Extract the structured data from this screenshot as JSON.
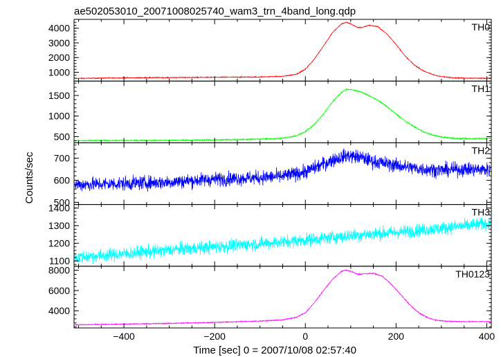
{
  "chart_data": {
    "type": "line",
    "title": "ae502053010_20071008025740_wam3_trn_4band_long.qdp",
    "xlabel": "Time [sec] 0 = 2007/10/08 02:57:40",
    "ylabel": "Counts/sec",
    "xlim": [
      -510,
      410
    ],
    "xticks": [
      -400,
      -200,
      0,
      200,
      400
    ],
    "xtick_labels": [
      "−400",
      "−200",
      "0",
      "200",
      "400"
    ],
    "grid": false,
    "panels": [
      {
        "name": "TH0",
        "color": "#ff0000",
        "ylim": [
          400,
          4600
        ],
        "yticks": [
          1000,
          2000,
          3000,
          4000
        ],
        "ytick_labels": [
          "1000",
          "2000",
          "3000",
          "4000"
        ],
        "noise": 30,
        "points": [
          [
            -510,
            580
          ],
          [
            -400,
            620
          ],
          [
            -300,
            640
          ],
          [
            -200,
            660
          ],
          [
            -100,
            680
          ],
          [
            -50,
            720
          ],
          [
            -20,
            870
          ],
          [
            0,
            1200
          ],
          [
            20,
            1900
          ],
          [
            40,
            2800
          ],
          [
            60,
            3700
          ],
          [
            80,
            4300
          ],
          [
            90,
            4400
          ],
          [
            100,
            4300
          ],
          [
            115,
            4050
          ],
          [
            125,
            4050
          ],
          [
            140,
            4200
          ],
          [
            160,
            4100
          ],
          [
            180,
            3600
          ],
          [
            200,
            2900
          ],
          [
            220,
            2100
          ],
          [
            240,
            1500
          ],
          [
            260,
            1100
          ],
          [
            280,
            850
          ],
          [
            300,
            700
          ],
          [
            330,
            620
          ],
          [
            360,
            600
          ],
          [
            410,
            590
          ]
        ]
      },
      {
        "name": "TH1",
        "color": "#00ff00",
        "ylim": [
          350,
          1850
        ],
        "yticks": [
          500,
          1000,
          1500
        ],
        "ytick_labels": [
          "500",
          "1000",
          "1500"
        ],
        "noise": 15,
        "points": [
          [
            -510,
            400
          ],
          [
            -300,
            410
          ],
          [
            -200,
            420
          ],
          [
            -100,
            440
          ],
          [
            -50,
            460
          ],
          [
            -20,
            520
          ],
          [
            0,
            620
          ],
          [
            20,
            800
          ],
          [
            40,
            1050
          ],
          [
            60,
            1350
          ],
          [
            80,
            1580
          ],
          [
            90,
            1650
          ],
          [
            100,
            1640
          ],
          [
            120,
            1600
          ],
          [
            140,
            1500
          ],
          [
            160,
            1380
          ],
          [
            180,
            1230
          ],
          [
            200,
            1050
          ],
          [
            220,
            880
          ],
          [
            240,
            740
          ],
          [
            260,
            620
          ],
          [
            280,
            540
          ],
          [
            300,
            490
          ],
          [
            340,
            450
          ],
          [
            410,
            460
          ]
        ]
      },
      {
        "name": "TH2",
        "color": "#0000ff",
        "ylim": [
          490,
          770
        ],
        "yticks": [
          500,
          600,
          700
        ],
        "ytick_labels": [
          "500",
          "600",
          "700"
        ],
        "noise": 30,
        "points": [
          [
            -510,
            580
          ],
          [
            -400,
            585
          ],
          [
            -300,
            592
          ],
          [
            -200,
            605
          ],
          [
            -100,
            612
          ],
          [
            -50,
            618
          ],
          [
            0,
            638
          ],
          [
            30,
            665
          ],
          [
            60,
            692
          ],
          [
            90,
            712
          ],
          [
            120,
            705
          ],
          [
            150,
            685
          ],
          [
            200,
            668
          ],
          [
            250,
            652
          ],
          [
            300,
            646
          ],
          [
            350,
            650
          ],
          [
            410,
            648
          ]
        ]
      },
      {
        "name": "TH3",
        "color": "#00ffff",
        "ylim": [
          1070,
          1420
        ],
        "yticks": [
          1100,
          1200,
          1300,
          1400
        ],
        "ytick_labels": [
          "1100",
          "1200",
          "1300",
          "1400"
        ],
        "noise": 35,
        "points": [
          [
            -510,
            1120
          ],
          [
            -400,
            1140
          ],
          [
            -300,
            1162
          ],
          [
            -200,
            1180
          ],
          [
            -100,
            1198
          ],
          [
            0,
            1218
          ],
          [
            100,
            1245
          ],
          [
            200,
            1262
          ],
          [
            300,
            1285
          ],
          [
            410,
            1315
          ]
        ]
      },
      {
        "name": "TH0123",
        "color": "#ff00ff",
        "ylim": [
          2300,
          8400
        ],
        "yticks": [
          4000,
          6000,
          8000
        ],
        "ytick_labels": [
          "4000",
          "6000",
          "8000"
        ],
        "noise": 45,
        "points": [
          [
            -510,
            2600
          ],
          [
            -400,
            2680
          ],
          [
            -300,
            2750
          ],
          [
            -200,
            2850
          ],
          [
            -100,
            2980
          ],
          [
            -50,
            3100
          ],
          [
            -20,
            3350
          ],
          [
            0,
            3800
          ],
          [
            20,
            4800
          ],
          [
            40,
            6000
          ],
          [
            60,
            7100
          ],
          [
            80,
            7900
          ],
          [
            90,
            8000
          ],
          [
            100,
            7900
          ],
          [
            115,
            7600
          ],
          [
            130,
            7650
          ],
          [
            150,
            7700
          ],
          [
            170,
            7400
          ],
          [
            190,
            6600
          ],
          [
            210,
            5600
          ],
          [
            230,
            4600
          ],
          [
            250,
            3800
          ],
          [
            270,
            3300
          ],
          [
            290,
            3050
          ],
          [
            320,
            2950
          ],
          [
            360,
            2920
          ],
          [
            410,
            2930
          ]
        ]
      }
    ]
  }
}
